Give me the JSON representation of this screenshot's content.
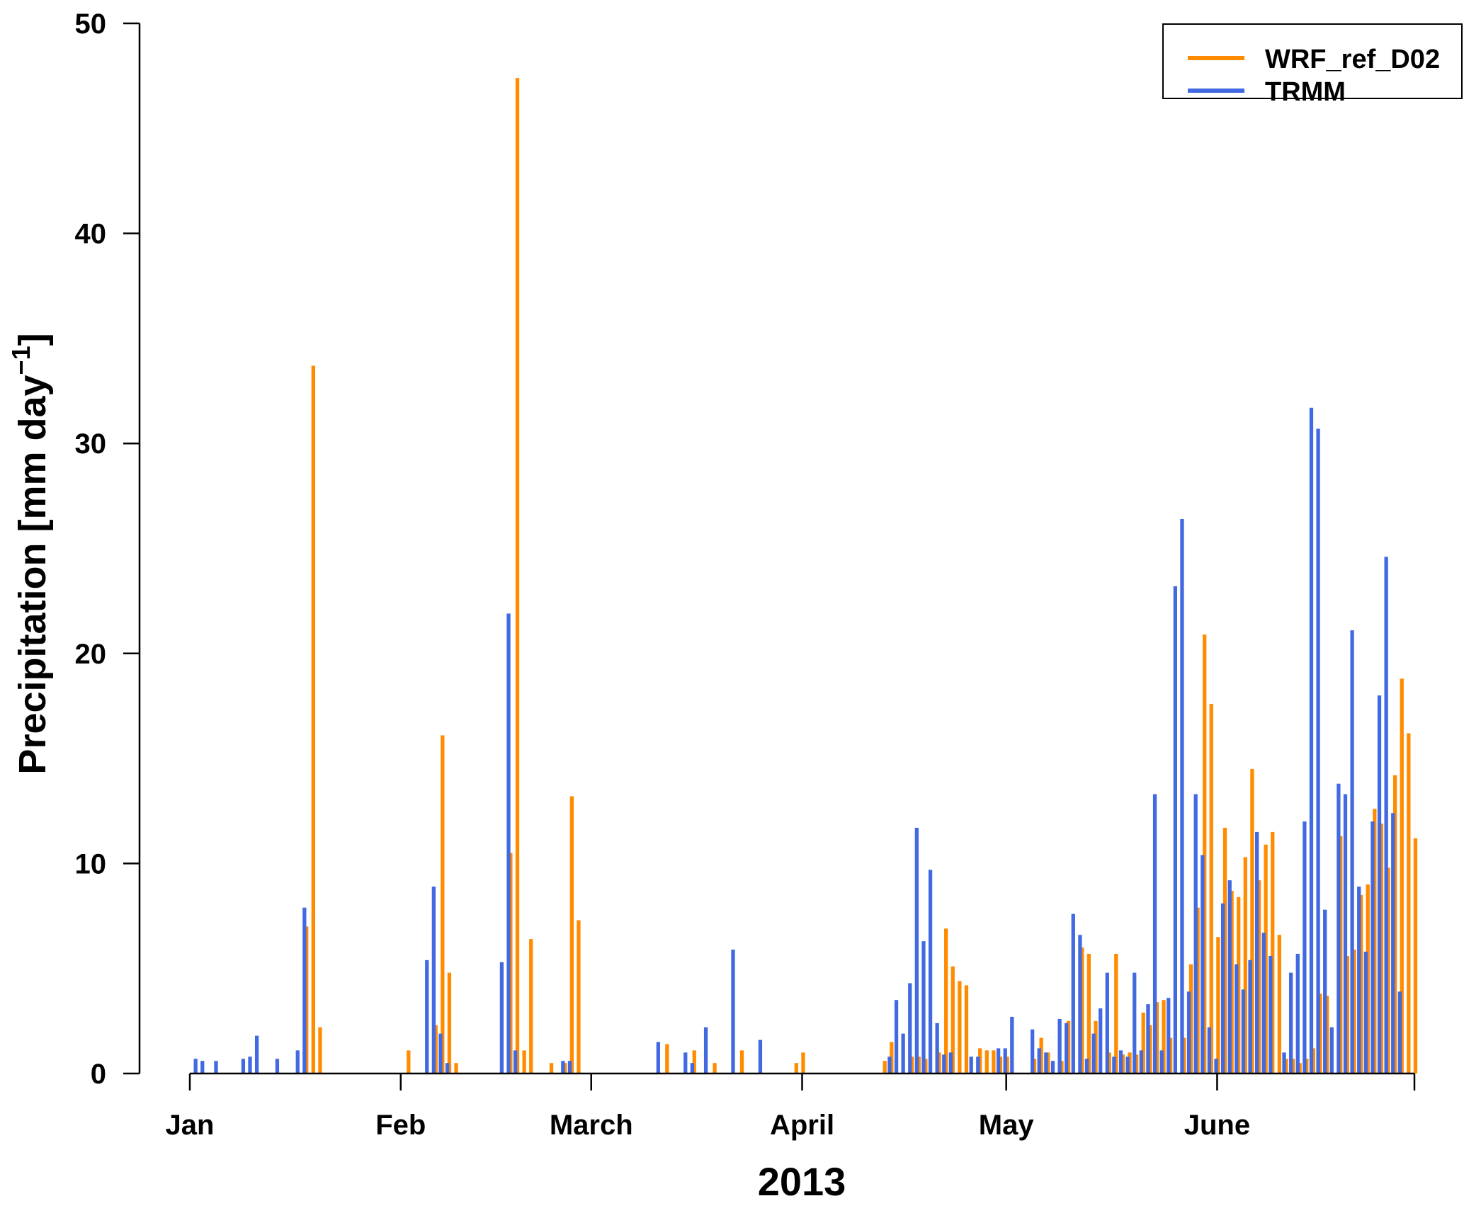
{
  "chart_data": {
    "type": "bar",
    "x_unit": "day of year 2013",
    "xlabel": "2013",
    "ylabel": "Precipitation [mm day",
    "ylabel_sup": "−1",
    "ylabel_close": "]",
    "xlim": [
      1,
      181
    ],
    "ylim": [
      0,
      50
    ],
    "y_ticks": [
      0,
      10,
      20,
      30,
      40,
      50
    ],
    "x_ticks": [
      {
        "day": 1,
        "label": "Jan"
      },
      {
        "day": 32,
        "label": "Feb"
      },
      {
        "day": 60,
        "label": "March"
      },
      {
        "day": 91,
        "label": "April"
      },
      {
        "day": 121,
        "label": "May"
      },
      {
        "day": 152,
        "label": "June"
      }
    ],
    "grid": false,
    "legend_position": "top-right",
    "series": [
      {
        "name": "WRF_ref_D02",
        "color": "#ff8c00",
        "points": [
          [
            18,
            7.0
          ],
          [
            19,
            33.7
          ],
          [
            20,
            2.2
          ],
          [
            33,
            1.1
          ],
          [
            37,
            2.3
          ],
          [
            38,
            16.1
          ],
          [
            39,
            4.8
          ],
          [
            40,
            0.5
          ],
          [
            48,
            10.5
          ],
          [
            49,
            47.4
          ],
          [
            50,
            1.1
          ],
          [
            51,
            6.4
          ],
          [
            54,
            0.5
          ],
          [
            56,
            0.5
          ],
          [
            57,
            13.2
          ],
          [
            58,
            7.3
          ],
          [
            71,
            1.4
          ],
          [
            75,
            1.1
          ],
          [
            78,
            0.5
          ],
          [
            82,
            1.1
          ],
          [
            90,
            0.5
          ],
          [
            91,
            1.0
          ],
          [
            103,
            0.6
          ],
          [
            104,
            1.5
          ],
          [
            107,
            0.8
          ],
          [
            108,
            0.8
          ],
          [
            109,
            0.7
          ],
          [
            111,
            1.0
          ],
          [
            112,
            6.9
          ],
          [
            113,
            5.1
          ],
          [
            114,
            4.4
          ],
          [
            115,
            4.2
          ],
          [
            117,
            1.2
          ],
          [
            118,
            1.1
          ],
          [
            119,
            1.1
          ],
          [
            120,
            0.8
          ],
          [
            121,
            0.8
          ],
          [
            125,
            0.7
          ],
          [
            126,
            1.7
          ],
          [
            127,
            1.0
          ],
          [
            129,
            0.6
          ],
          [
            130,
            2.5
          ],
          [
            132,
            6.0
          ],
          [
            133,
            5.7
          ],
          [
            134,
            2.5
          ],
          [
            136,
            1.0
          ],
          [
            137,
            5.7
          ],
          [
            138,
            0.9
          ],
          [
            139,
            1.0
          ],
          [
            140,
            0.9
          ],
          [
            141,
            2.9
          ],
          [
            142,
            2.3
          ],
          [
            143,
            3.4
          ],
          [
            144,
            3.5
          ],
          [
            145,
            1.7
          ],
          [
            147,
            1.7
          ],
          [
            148,
            5.2
          ],
          [
            149,
            7.9
          ],
          [
            150,
            20.9
          ],
          [
            151,
            17.6
          ],
          [
            152,
            6.5
          ],
          [
            153,
            11.7
          ],
          [
            154,
            8.7
          ],
          [
            155,
            8.4
          ],
          [
            156,
            10.3
          ],
          [
            157,
            14.5
          ],
          [
            158,
            9.2
          ],
          [
            159,
            10.9
          ],
          [
            160,
            11.5
          ],
          [
            161,
            6.6
          ],
          [
            162,
            0.7
          ],
          [
            163,
            0.7
          ],
          [
            164,
            0.5
          ],
          [
            165,
            0.7
          ],
          [
            166,
            1.2
          ],
          [
            167,
            3.8
          ],
          [
            168,
            3.7
          ],
          [
            170,
            11.3
          ],
          [
            171,
            5.6
          ],
          [
            172,
            5.9
          ],
          [
            173,
            8.5
          ],
          [
            174,
            9.0
          ],
          [
            175,
            12.6
          ],
          [
            176,
            11.9
          ],
          [
            177,
            9.8
          ],
          [
            178,
            14.2
          ],
          [
            179,
            18.8
          ],
          [
            180,
            16.2
          ],
          [
            181,
            11.2
          ]
        ]
      },
      {
        "name": "TRMM",
        "color": "#4169e1",
        "points": [
          [
            2,
            0.7
          ],
          [
            3,
            0.6
          ],
          [
            5,
            0.6
          ],
          [
            9,
            0.7
          ],
          [
            10,
            0.8
          ],
          [
            11,
            1.8
          ],
          [
            14,
            0.7
          ],
          [
            17,
            1.1
          ],
          [
            18,
            7.9
          ],
          [
            36,
            5.4
          ],
          [
            37,
            8.9
          ],
          [
            38,
            1.9
          ],
          [
            39,
            0.5
          ],
          [
            47,
            5.3
          ],
          [
            48,
            21.9
          ],
          [
            49,
            1.1
          ],
          [
            56,
            0.6
          ],
          [
            57,
            0.6
          ],
          [
            70,
            1.5
          ],
          [
            74,
            1.0
          ],
          [
            75,
            0.5
          ],
          [
            77,
            2.2
          ],
          [
            81,
            5.9
          ],
          [
            85,
            1.6
          ],
          [
            104,
            0.8
          ],
          [
            105,
            3.5
          ],
          [
            106,
            1.9
          ],
          [
            107,
            4.3
          ],
          [
            108,
            11.7
          ],
          [
            109,
            6.3
          ],
          [
            110,
            9.7
          ],
          [
            111,
            2.4
          ],
          [
            112,
            0.9
          ],
          [
            113,
            1.0
          ],
          [
            116,
            0.8
          ],
          [
            117,
            0.8
          ],
          [
            120,
            1.2
          ],
          [
            121,
            1.2
          ],
          [
            122,
            2.7
          ],
          [
            125,
            2.1
          ],
          [
            126,
            1.2
          ],
          [
            127,
            1.0
          ],
          [
            128,
            0.6
          ],
          [
            129,
            2.6
          ],
          [
            130,
            2.4
          ],
          [
            131,
            7.6
          ],
          [
            132,
            6.6
          ],
          [
            133,
            0.7
          ],
          [
            134,
            1.9
          ],
          [
            135,
            3.1
          ],
          [
            136,
            4.8
          ],
          [
            137,
            0.8
          ],
          [
            138,
            1.1
          ],
          [
            139,
            0.8
          ],
          [
            140,
            4.8
          ],
          [
            141,
            1.1
          ],
          [
            142,
            3.3
          ],
          [
            143,
            13.3
          ],
          [
            144,
            1.1
          ],
          [
            145,
            3.6
          ],
          [
            146,
            23.2
          ],
          [
            147,
            26.4
          ],
          [
            148,
            3.9
          ],
          [
            149,
            13.3
          ],
          [
            150,
            10.4
          ],
          [
            151,
            2.2
          ],
          [
            152,
            0.7
          ],
          [
            153,
            8.1
          ],
          [
            154,
            9.2
          ],
          [
            155,
            5.2
          ],
          [
            156,
            4.0
          ],
          [
            157,
            5.4
          ],
          [
            158,
            11.5
          ],
          [
            159,
            6.7
          ],
          [
            160,
            5.6
          ],
          [
            162,
            1.0
          ],
          [
            163,
            4.8
          ],
          [
            164,
            5.7
          ],
          [
            165,
            12.0
          ],
          [
            166,
            31.7
          ],
          [
            167,
            30.7
          ],
          [
            168,
            7.8
          ],
          [
            169,
            2.2
          ],
          [
            170,
            13.8
          ],
          [
            171,
            13.3
          ],
          [
            172,
            21.1
          ],
          [
            173,
            8.9
          ],
          [
            174,
            5.8
          ],
          [
            175,
            12.0
          ],
          [
            176,
            18.0
          ],
          [
            177,
            24.6
          ],
          [
            178,
            12.4
          ],
          [
            179,
            3.9
          ]
        ]
      }
    ]
  },
  "legend": {
    "items": [
      {
        "label": "WRF_ref_D02",
        "color": "#ff8c00"
      },
      {
        "label": "TRMM",
        "color": "#4169e1"
      }
    ]
  }
}
